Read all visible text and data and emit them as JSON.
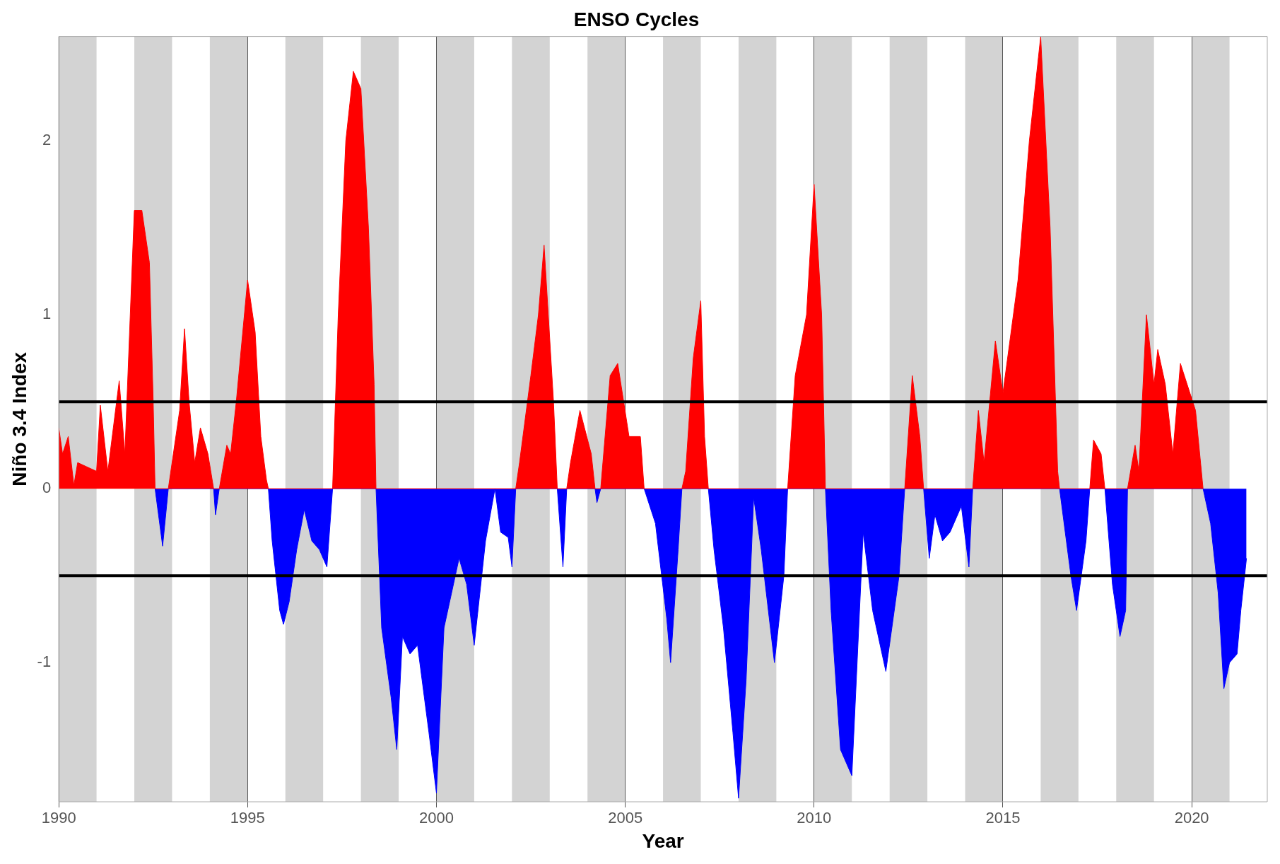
{
  "chart_data": {
    "type": "area",
    "title": "ENSO Cycles",
    "xlabel": "Year",
    "ylabel": "Niño 3.4 Index",
    "xlim": [
      1990,
      2022
    ],
    "xticks": [
      1990,
      1995,
      2000,
      2005,
      2010,
      2015,
      2020
    ],
    "ylim": [
      -1.8,
      2.6
    ],
    "yticks": [
      -1,
      0,
      1,
      2
    ],
    "grid": "x",
    "legend": false,
    "bands": [
      {
        "axis": "x",
        "from": 1990,
        "to": 1991,
        "color": "#d3d3d3"
      },
      {
        "axis": "x",
        "from": 1992,
        "to": 1993,
        "color": "#d3d3d3"
      },
      {
        "axis": "x",
        "from": 1994,
        "to": 1995,
        "color": "#d3d3d3"
      },
      {
        "axis": "x",
        "from": 1996,
        "to": 1997,
        "color": "#d3d3d3"
      },
      {
        "axis": "x",
        "from": 1998,
        "to": 1999,
        "color": "#d3d3d3"
      },
      {
        "axis": "x",
        "from": 2000,
        "to": 2001,
        "color": "#d3d3d3"
      },
      {
        "axis": "x",
        "from": 2002,
        "to": 2003,
        "color": "#d3d3d3"
      },
      {
        "axis": "x",
        "from": 2004,
        "to": 2005,
        "color": "#d3d3d3"
      },
      {
        "axis": "x",
        "from": 2006,
        "to": 2007,
        "color": "#d3d3d3"
      },
      {
        "axis": "x",
        "from": 2008,
        "to": 2009,
        "color": "#d3d3d3"
      },
      {
        "axis": "x",
        "from": 2010,
        "to": 2011,
        "color": "#d3d3d3"
      },
      {
        "axis": "x",
        "from": 2012,
        "to": 2013,
        "color": "#d3d3d3"
      },
      {
        "axis": "x",
        "from": 2014,
        "to": 2015,
        "color": "#d3d3d3"
      },
      {
        "axis": "x",
        "from": 2016,
        "to": 2017,
        "color": "#d3d3d3"
      },
      {
        "axis": "x",
        "from": 2018,
        "to": 2019,
        "color": "#d3d3d3"
      },
      {
        "axis": "x",
        "from": 2020,
        "to": 2021,
        "color": "#d3d3d3"
      }
    ],
    "ref_lines": [
      {
        "axis": "y",
        "value": 0.5,
        "color": "#000000"
      },
      {
        "axis": "y",
        "value": -0.5,
        "color": "#000000"
      }
    ],
    "series": [
      {
        "color": "#ff0000",
        "x": [
          1990.0,
          1990.1,
          1990.25,
          1990.4,
          1990.5,
          1990.8,
          1991.0,
          1991.1,
          1991.3,
          1991.6,
          1991.75,
          1992.0,
          1992.2,
          1992.4,
          1992.5,
          1992.55,
          1992.9,
          1993.2,
          1993.33,
          1993.45,
          1993.6,
          1993.75,
          1993.95,
          1994.1,
          1994.25,
          1994.45,
          1994.55,
          1994.7,
          1995.0,
          1995.2,
          1995.35,
          1995.5,
          1995.55,
          1997.25,
          1997.4,
          1997.6,
          1997.8,
          1998.0,
          1998.2,
          1998.35,
          1998.4,
          2002.1,
          2002.2,
          2002.5,
          2002.7,
          2002.85,
          2003.1,
          2003.2,
          2003.45,
          2003.55,
          2003.8,
          2004.1,
          2004.2,
          2004.35,
          2004.6,
          2004.8,
          2005.1,
          2005.4,
          2005.5,
          2006.5,
          2006.6,
          2006.8,
          2007.0,
          2007.1,
          2007.2,
          2009.3,
          2009.5,
          2009.8,
          2010.0,
          2010.2,
          2010.3,
          2012.4,
          2012.6,
          2012.8,
          2012.9,
          2014.2,
          2014.35,
          2014.5,
          2014.8,
          2015.0,
          2015.4,
          2015.7,
          2016.0,
          2016.25,
          2016.45,
          2016.5,
          2017.3,
          2017.4,
          2017.6,
          2017.7,
          2018.3,
          2018.5,
          2018.6,
          2018.8,
          2019.0,
          2019.1,
          2019.3,
          2019.5,
          2019.7,
          2020.1,
          2020.3
        ],
        "values": [
          0.35,
          0.2,
          0.3,
          0.02,
          0.15,
          0.12,
          0.1,
          0.48,
          0.1,
          0.62,
          0.2,
          1.6,
          1.6,
          1.3,
          0.5,
          0,
          0,
          0.45,
          0.92,
          0.5,
          0.15,
          0.35,
          0.2,
          0,
          0,
          0.25,
          0.2,
          0.5,
          1.2,
          0.9,
          0.3,
          0.05,
          0,
          0,
          1.0,
          2.0,
          2.4,
          2.3,
          1.5,
          0.6,
          0,
          0,
          0.15,
          0.65,
          1.0,
          1.4,
          0.5,
          0,
          0,
          0.15,
          0.45,
          0.2,
          0,
          0,
          0.65,
          0.72,
          0.3,
          0.3,
          0,
          0,
          0.1,
          0.75,
          1.08,
          0.3,
          0,
          0,
          0.65,
          1.0,
          1.75,
          1.0,
          0,
          0,
          0.65,
          0.3,
          0,
          0,
          0.45,
          0.15,
          0.85,
          0.55,
          1.2,
          2.0,
          2.6,
          1.5,
          0.1,
          0,
          0,
          0.28,
          0.2,
          0,
          0,
          0.25,
          0.1,
          1.0,
          0.6,
          0.8,
          0.6,
          0.2,
          0.72,
          0.45,
          0
        ]
      },
      {
        "color": "#0000ff",
        "x": [
          1992.55,
          1992.75,
          1992.9,
          1994.1,
          1994.15,
          1994.25,
          1995.55,
          1995.65,
          1995.85,
          1995.95,
          1996.1,
          1996.3,
          1996.5,
          1996.7,
          1996.9,
          1997.1,
          1997.25,
          1998.4,
          1998.55,
          1998.8,
          1998.95,
          1999.1,
          1999.3,
          1999.5,
          1999.8,
          2000.0,
          2000.2,
          2000.6,
          2000.8,
          2001.0,
          2001.3,
          2001.55,
          2001.7,
          2001.9,
          2002.0,
          2002.1,
          2003.2,
          2003.35,
          2003.45,
          2004.2,
          2004.25,
          2004.35,
          2005.5,
          2005.8,
          2006.1,
          2006.2,
          2006.4,
          2006.5,
          2007.2,
          2007.35,
          2007.6,
          2007.85,
          2008.0,
          2008.2,
          2008.4,
          2008.6,
          2008.95,
          2009.2,
          2009.3,
          2010.3,
          2010.45,
          2010.7,
          2011.0,
          2011.3,
          2011.55,
          2011.9,
          2012.25,
          2012.4,
          2012.9,
          2013.05,
          2013.2,
          2013.4,
          2013.6,
          2013.9,
          2014.1,
          2014.2,
          2016.5,
          2016.8,
          2016.95,
          2017.2,
          2017.3,
          2017.7,
          2017.9,
          2018.1,
          2018.25,
          2018.3,
          2020.3,
          2020.5,
          2020.7,
          2020.85,
          2021.0,
          2021.2,
          2021.3,
          2021.45
        ],
        "values": [
          0,
          -0.33,
          0,
          0,
          -0.15,
          0,
          0,
          -0.3,
          -0.7,
          -0.78,
          -0.65,
          -0.35,
          -0.12,
          -0.3,
          -0.35,
          -0.45,
          0,
          0,
          -0.8,
          -1.2,
          -1.5,
          -0.85,
          -0.95,
          -0.9,
          -1.4,
          -1.75,
          -0.8,
          -0.4,
          -0.55,
          -0.9,
          -0.3,
          0,
          -0.25,
          -0.28,
          -0.45,
          0,
          0,
          -0.45,
          0,
          0,
          -0.08,
          0,
          0,
          -0.2,
          -0.75,
          -1.0,
          -0.35,
          0,
          0,
          -0.35,
          -0.8,
          -1.4,
          -1.78,
          -1.1,
          -0.05,
          -0.35,
          -1.0,
          -0.5,
          0,
          0,
          -0.7,
          -1.5,
          -1.65,
          -0.25,
          -0.7,
          -1.05,
          -0.5,
          0,
          0,
          -0.4,
          -0.15,
          -0.3,
          -0.25,
          -0.1,
          -0.45,
          0,
          0,
          -0.5,
          -0.7,
          -0.3,
          0,
          0,
          -0.55,
          -0.85,
          -0.7,
          0,
          0,
          -0.2,
          -0.6,
          -1.15,
          -1.0,
          -0.95,
          -0.7,
          -0.4
        ]
      }
    ]
  }
}
